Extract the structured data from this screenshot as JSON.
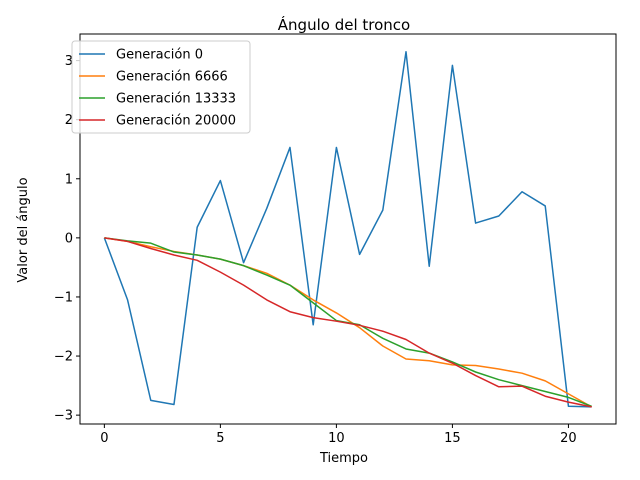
{
  "chart_data": {
    "type": "line",
    "title": "Ángulo del tronco",
    "xlabel": "Tiempo",
    "ylabel": "Valor del ángulo",
    "xlim": [
      -1.05,
      22.05
    ],
    "ylim": [
      -3.15,
      3.45
    ],
    "xticks": [
      0,
      5,
      10,
      15,
      20
    ],
    "yticks": [
      -3,
      -2,
      -1,
      0,
      1,
      2,
      3
    ],
    "ytick_labels": [
      "−3",
      "−2",
      "−1",
      "0",
      "1",
      "2",
      "3"
    ],
    "grid": false,
    "legend_position": "top-left",
    "x": [
      0,
      1,
      2,
      3,
      4,
      5,
      6,
      7,
      8,
      9,
      10,
      11,
      12,
      13,
      14,
      15,
      16,
      17,
      18,
      19,
      20,
      21
    ],
    "series": [
      {
        "name": "Generación 0",
        "color": "#1f77b4",
        "values": [
          0.0,
          -1.05,
          -2.75,
          -2.82,
          0.18,
          0.97,
          -0.42,
          0.5,
          1.53,
          -1.47,
          1.53,
          -0.28,
          0.47,
          3.15,
          -0.48,
          2.92,
          0.25,
          0.37,
          0.78,
          0.54,
          -2.85,
          -2.86
        ]
      },
      {
        "name": "Generación 6666",
        "color": "#ff7f0e",
        "values": [
          0.0,
          -0.06,
          -0.15,
          -0.23,
          -0.29,
          -0.36,
          -0.47,
          -0.6,
          -0.8,
          -1.05,
          -1.27,
          -1.52,
          -1.83,
          -2.05,
          -2.08,
          -2.15,
          -2.16,
          -2.22,
          -2.29,
          -2.42,
          -2.64,
          -2.86
        ]
      },
      {
        "name": "Generación 13333",
        "color": "#2ca02c",
        "values": [
          0.0,
          -0.05,
          -0.09,
          -0.24,
          -0.29,
          -0.36,
          -0.47,
          -0.63,
          -0.8,
          -1.1,
          -1.4,
          -1.47,
          -1.7,
          -1.88,
          -1.95,
          -2.1,
          -2.27,
          -2.4,
          -2.5,
          -2.6,
          -2.7,
          -2.85
        ]
      },
      {
        "name": "Generación 20000",
        "color": "#d62728",
        "values": [
          0.0,
          -0.06,
          -0.18,
          -0.29,
          -0.38,
          -0.58,
          -0.8,
          -1.05,
          -1.25,
          -1.35,
          -1.41,
          -1.48,
          -1.58,
          -1.72,
          -1.95,
          -2.12,
          -2.33,
          -2.52,
          -2.51,
          -2.68,
          -2.78,
          -2.86
        ]
      }
    ]
  }
}
